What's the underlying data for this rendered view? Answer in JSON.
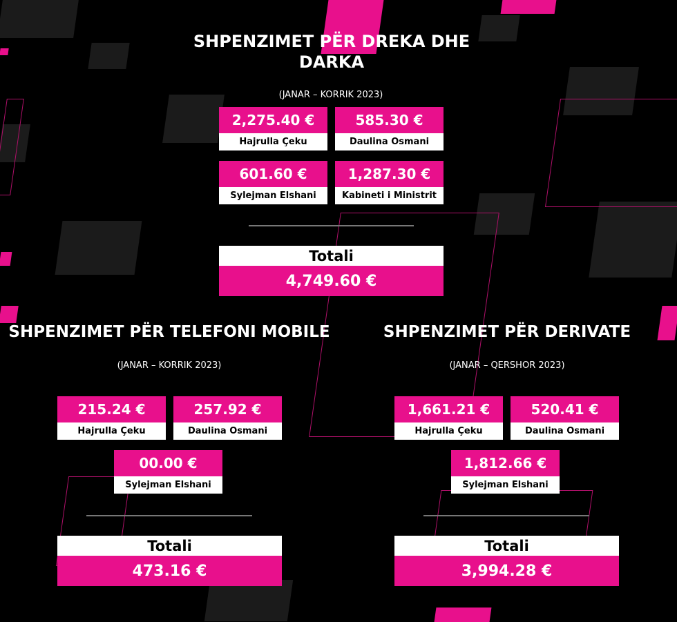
{
  "colors": {
    "accent": "#e8108c",
    "background": "#000000",
    "card_label_bg": "#ffffff"
  },
  "lunch": {
    "title_line1": "SHPENZIMET PËR DREKA DHE",
    "title_line2": "DARKA",
    "period": "(JANAR – KORRIK 2023)",
    "items": [
      {
        "value": "2,275.40 €",
        "name": "Hajrulla Çeku"
      },
      {
        "value": "585.30 €",
        "name": "Daulina Osmani"
      },
      {
        "value": "601.60 €",
        "name": "Sylejman Elshani"
      },
      {
        "value": "1,287.30 €",
        "name": "Kabineti i Ministrit"
      }
    ],
    "total_label": "Totali",
    "total_value": "4,749.60 €"
  },
  "mobile": {
    "title": "SHPENZIMET PËR TELEFONI MOBILE",
    "period": "(JANAR – KORRIK 2023)",
    "items": [
      {
        "value": "215.24 €",
        "name": "Hajrulla Çeku"
      },
      {
        "value": "257.92 €",
        "name": "Daulina Osmani"
      },
      {
        "value": "00.00 €",
        "name": "Sylejman Elshani"
      }
    ],
    "total_label": "Totali",
    "total_value": "473.16 €"
  },
  "fuel": {
    "title": "SHPENZIMET PËR DERIVATE",
    "period": "(JANAR – QERSHOR 2023)",
    "items": [
      {
        "value": "1,661.21 €",
        "name": "Hajrulla Çeku"
      },
      {
        "value": "520.41 €",
        "name": "Daulina Osmani"
      },
      {
        "value": "1,812.66 €",
        "name": "Sylejman Elshani"
      }
    ],
    "total_label": "Totali",
    "total_value": "3,994.28 €"
  }
}
